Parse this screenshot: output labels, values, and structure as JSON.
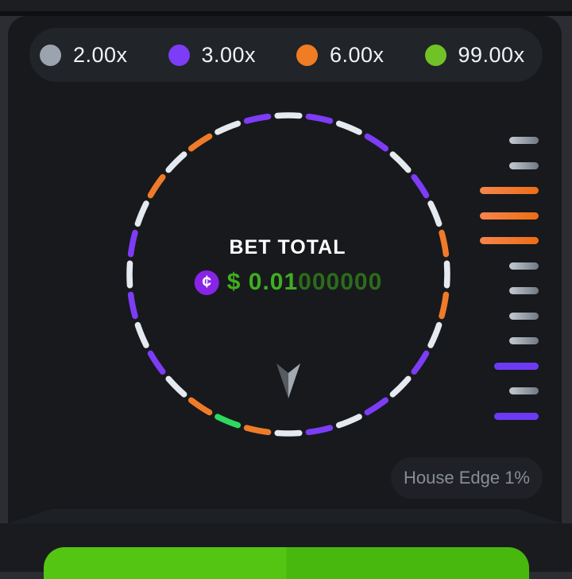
{
  "legend": {
    "items": [
      {
        "label": "2.00x",
        "color": "#9ba4ae"
      },
      {
        "label": "3.00x",
        "color": "#7d3cf5"
      },
      {
        "label": "6.00x",
        "color": "#f07c24"
      },
      {
        "label": "99.00x",
        "color": "#70c226"
      }
    ]
  },
  "wheel": {
    "bet_total_label": "BET TOTAL",
    "currency_icon": "cent-coin-icon",
    "currency_symbol": "¢",
    "amount_prefix": "$ ",
    "amount_main": "0.01",
    "amount_trailing": "000000",
    "colors": {
      "coin_bg": "#8824e6",
      "amount_main": "#3fae20",
      "amount_trailing": "#2c6b1b"
    },
    "palette": {
      "white": "#e4eaf0",
      "purple": "#7d3cf5",
      "orange": "#ef7b28",
      "green": "#2ed95f"
    },
    "segments_clockwise_from_top": [
      "white",
      "purple",
      "white",
      "purple",
      "white",
      "purple",
      "white",
      "orange",
      "white",
      "orange",
      "white",
      "purple",
      "white",
      "purple",
      "white",
      "purple",
      "white",
      "orange",
      "green",
      "orange",
      "white",
      "purple",
      "white",
      "purple",
      "white",
      "purple",
      "white",
      "orange",
      "white",
      "orange",
      "white",
      "purple"
    ],
    "pointer": {
      "left_color": "#565b61",
      "right_color": "#a2a9b0"
    }
  },
  "history": {
    "bars": [
      {
        "color": "gray",
        "len": "short"
      },
      {
        "color": "gray",
        "len": "short"
      },
      {
        "color": "orange",
        "len": "long"
      },
      {
        "color": "orange",
        "len": "long"
      },
      {
        "color": "orange",
        "len": "long"
      },
      {
        "color": "gray",
        "len": "short"
      },
      {
        "color": "gray",
        "len": "short"
      },
      {
        "color": "gray",
        "len": "short"
      },
      {
        "color": "gray",
        "len": "short"
      },
      {
        "color": "purple",
        "len": "medium"
      },
      {
        "color": "gray",
        "len": "short"
      },
      {
        "color": "purple",
        "len": "medium"
      }
    ]
  },
  "house_edge": {
    "label": "House Edge 1%"
  },
  "bet_button": {
    "color_left": "#55c513",
    "color_right": "#48b80e"
  }
}
